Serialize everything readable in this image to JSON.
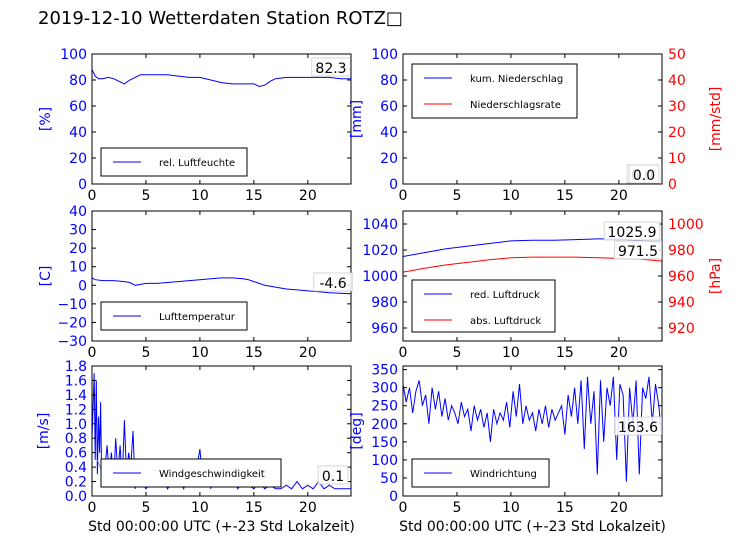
{
  "title": "2019-12-10 Wetterdaten Station ROTZ□",
  "colors": {
    "blue": "#0000ff",
    "red": "#ff0000",
    "lightblue": "#8080ff"
  },
  "chart_data": [
    {
      "id": "humidity",
      "type": "line",
      "ylabel": "[%]",
      "xlim": [
        0,
        24
      ],
      "ylim": [
        0,
        100
      ],
      "xticks": [
        0,
        5,
        10,
        15,
        20
      ],
      "yticks": [
        0,
        20,
        40,
        60,
        80,
        100
      ],
      "grid": false,
      "legend_position": "lower-left",
      "annotation": "82.3",
      "series": [
        {
          "name": "rel. Luftfeuchte",
          "color": "#0000ff",
          "x": [
            0,
            0.3,
            0.6,
            1,
            1.5,
            2,
            2.5,
            3,
            3.5,
            4,
            4.5,
            5,
            6,
            7,
            8,
            9,
            10,
            11,
            12,
            13,
            14,
            15,
            15.5,
            16,
            16.5,
            17,
            18,
            19,
            20,
            21,
            22,
            23,
            24
          ],
          "y": [
            88,
            83,
            81,
            81,
            82,
            81,
            79,
            77,
            80,
            82,
            84,
            84,
            84,
            84,
            83,
            82,
            82,
            80,
            78,
            77,
            77,
            77,
            75,
            76,
            79,
            81,
            82,
            82,
            82,
            82,
            82,
            81,
            81
          ]
        }
      ]
    },
    {
      "id": "precipitation",
      "type": "line",
      "ylabel": "[mm]",
      "ylabel_right": "[mm/std]",
      "xlim": [
        0,
        24
      ],
      "ylim": [
        0,
        100
      ],
      "ylim_right": [
        0,
        50
      ],
      "xticks": [
        0,
        5,
        10,
        15,
        20
      ],
      "yticks": [
        0,
        20,
        40,
        60,
        80,
        100
      ],
      "yticks_right": [
        0,
        10,
        20,
        30,
        40,
        50
      ],
      "grid": false,
      "legend_position": "upper-left",
      "annotations": [
        "0.0",
        "0.0"
      ],
      "series": [
        {
          "name": "kum. Niederschlag",
          "color": "#0000ff",
          "axis": "left",
          "x": [
            0,
            24
          ],
          "y": [
            0,
            0
          ]
        },
        {
          "name": "Niederschlagsrate",
          "color": "#ff0000",
          "axis": "right",
          "x": [
            0,
            24
          ],
          "y": [
            0,
            0
          ]
        }
      ]
    },
    {
      "id": "temperature",
      "type": "line",
      "ylabel": "[C]",
      "xlim": [
        0,
        24
      ],
      "ylim": [
        -30,
        40
      ],
      "xticks": [
        0,
        5,
        10,
        15,
        20
      ],
      "yticks": [
        -30,
        -20,
        -10,
        0,
        10,
        20,
        30,
        40
      ],
      "grid": false,
      "legend_position": "lower-left",
      "annotation": "-4.6",
      "series": [
        {
          "name": "Lufttemperatur",
          "color": "#0000ff",
          "x": [
            0,
            0.3,
            1,
            2,
            3,
            3.5,
            4,
            4.5,
            5,
            6,
            7,
            8,
            9,
            10,
            11,
            12,
            13,
            14,
            14.5,
            15,
            15.5,
            16,
            17,
            18,
            19,
            20,
            21,
            22,
            23,
            24
          ],
          "y": [
            4,
            3,
            2.5,
            2.5,
            2,
            1.5,
            0,
            0.5,
            1,
            1,
            1.5,
            2,
            2.5,
            3,
            3.5,
            4,
            4,
            3.5,
            3,
            2,
            1,
            0,
            -1,
            -2,
            -2.5,
            -3,
            -3.5,
            -4,
            -4.3,
            -4.6
          ]
        }
      ]
    },
    {
      "id": "pressure",
      "type": "line",
      "ylabel_right": "[hPa]",
      "xlim": [
        0,
        24
      ],
      "ylim": [
        950,
        1050
      ],
      "ylim_right": [
        910,
        1010
      ],
      "xticks": [
        0,
        5,
        10,
        15,
        20
      ],
      "yticks": [
        960,
        980,
        1000,
        1020,
        1040
      ],
      "yticks_right": [
        920,
        940,
        960,
        980,
        1000
      ],
      "grid": false,
      "legend_position": "lower-left",
      "annotations": [
        "1025.9",
        "971.5"
      ],
      "series": [
        {
          "name": "red. Luftdruck",
          "color": "#0000ff",
          "axis": "left",
          "x": [
            0,
            2,
            4,
            6,
            8,
            10,
            12,
            14,
            16,
            18,
            20,
            22,
            24
          ],
          "y": [
            1015,
            1018,
            1021,
            1023,
            1025,
            1027,
            1027.5,
            1027.5,
            1028,
            1028.5,
            1028.5,
            1027,
            1026
          ]
        },
        {
          "name": "abs. Luftdruck",
          "color": "#ff0000",
          "axis": "right",
          "x": [
            0,
            2,
            4,
            6,
            8,
            10,
            12,
            14,
            16,
            18,
            20,
            22,
            24
          ],
          "y": [
            963,
            966,
            968.5,
            970.5,
            972.5,
            974,
            974.5,
            974.5,
            974.5,
            974,
            973.5,
            973,
            971.5
          ]
        }
      ]
    },
    {
      "id": "windspeed",
      "type": "line",
      "ylabel": "[m/s]",
      "xlabel": "Std 00:00:00 UTC (+-23 Std Lokalzeit)",
      "xlim": [
        0,
        24
      ],
      "ylim": [
        0,
        1.8
      ],
      "xticks": [
        0,
        5,
        10,
        15,
        20
      ],
      "yticks": [
        0,
        0.2,
        0.4,
        0.6,
        0.8,
        1.0,
        1.2,
        1.4,
        1.6,
        1.8
      ],
      "ytick_labels": [
        "0.0",
        "0.2",
        "0.4",
        "0.6",
        "0.8",
        "1.0",
        "1.2",
        "1.4",
        "1.6",
        "1.8"
      ],
      "grid": false,
      "legend_position": "lower-center",
      "annotation": "0.1",
      "series": [
        {
          "name": "Windgeschwindigkeit",
          "color": "#0000ff",
          "x": [
            0,
            0.2,
            0.3,
            0.4,
            0.5,
            0.6,
            0.7,
            0.8,
            0.9,
            1.0,
            1.2,
            1.4,
            1.6,
            1.8,
            2.0,
            2.2,
            2.4,
            2.6,
            2.8,
            3.0,
            3.2,
            3.4,
            3.6,
            3.8,
            4.0,
            4.3,
            4.6,
            5.0,
            5.5,
            6,
            6.5,
            7,
            7.5,
            8,
            8.5,
            9,
            9.5,
            10,
            10.2,
            10.4,
            10.6,
            10.8,
            11,
            11.3,
            11.6,
            12,
            12.5,
            13,
            13.5,
            14,
            14.5,
            15,
            15.5,
            16,
            16.5,
            17,
            17.5,
            18,
            18.5,
            19,
            19.5,
            20,
            20.5,
            21,
            21.5,
            22,
            22.5,
            23,
            23.5,
            24
          ],
          "y": [
            0.8,
            1.7,
            0.5,
            1.6,
            0.3,
            1.1,
            0.6,
            1.3,
            0.2,
            0.5,
            0.4,
            0.7,
            0.3,
            0.6,
            0.2,
            0.8,
            0.3,
            0.7,
            0.2,
            1.05,
            0.3,
            0.6,
            0.4,
            0.9,
            0.1,
            0.4,
            0.2,
            0.1,
            0.2,
            0.15,
            0.3,
            0.1,
            0.2,
            0.25,
            0.1,
            0.3,
            0.2,
            0.65,
            0.3,
            0.45,
            0.2,
            0.35,
            0.1,
            0.3,
            0.2,
            0.25,
            0.15,
            0.3,
            0.1,
            0.2,
            0.15,
            0.1,
            0.2,
            0.1,
            0.15,
            0.1,
            0.1,
            0.15,
            0.1,
            0.2,
            0.1,
            0.15,
            0.1,
            0.2,
            0.1,
            0.15,
            0.1,
            0.1,
            0.1,
            0.1
          ]
        },
        {
          "name": "",
          "color": "#8080ff",
          "x": [
            0.5,
            1,
            1.5,
            2,
            2.5,
            3,
            3.5,
            4,
            4.5,
            5,
            5.5,
            6,
            6.5,
            7,
            7.5,
            8,
            8.5,
            9,
            9.5,
            10,
            10.5,
            11,
            11.5,
            12,
            12.5,
            13,
            13.5,
            14,
            14.5,
            15,
            15.5,
            16,
            16.5,
            17
          ],
          "y": [
            0.5,
            0.3,
            0.4,
            0.2,
            0.35,
            0.25,
            0.4,
            0.2,
            0.3,
            0.2,
            0.25,
            0.2,
            0.3,
            0.15,
            0.3,
            0.25,
            0.4,
            0.3,
            0.35,
            0.45,
            0.5,
            0.4,
            0.45,
            0.35,
            0.3,
            0.25,
            0.35,
            0.3,
            0.2,
            0.15,
            0.3,
            0.2,
            0.25,
            0.15
          ]
        }
      ]
    },
    {
      "id": "winddir",
      "type": "line",
      "ylabel": "[deg]",
      "xlabel": "Std 00:00:00 UTC (+-23 Std Lokalzeit)",
      "xlim": [
        0,
        24
      ],
      "ylim": [
        0,
        360
      ],
      "xticks": [
        0,
        5,
        10,
        15,
        20
      ],
      "yticks": [
        0,
        50,
        100,
        150,
        200,
        250,
        300,
        350
      ],
      "grid": false,
      "legend_position": "lower-left",
      "annotation": "163.6",
      "series": [
        {
          "name": "Windrichtung",
          "color": "#0000ff",
          "x": [
            0,
            0.3,
            0.6,
            0.9,
            1.2,
            1.5,
            1.8,
            2.1,
            2.4,
            2.7,
            3.0,
            3.3,
            3.6,
            3.9,
            4.2,
            4.5,
            4.8,
            5.1,
            5.4,
            5.7,
            6.0,
            6.3,
            6.6,
            6.9,
            7.2,
            7.5,
            7.8,
            8.1,
            8.4,
            8.7,
            9.0,
            9.3,
            9.6,
            9.9,
            10.2,
            10.5,
            10.8,
            11.1,
            11.4,
            11.7,
            12.0,
            12.3,
            12.6,
            12.9,
            13.2,
            13.5,
            13.8,
            14.1,
            14.4,
            14.7,
            15.0,
            15.3,
            15.6,
            15.9,
            16.2,
            16.5,
            16.8,
            17.1,
            17.4,
            17.7,
            18.0,
            18.3,
            18.6,
            18.9,
            19.2,
            19.5,
            19.8,
            20.1,
            20.4,
            20.7,
            21.0,
            21.3,
            21.6,
            21.9,
            22.2,
            22.5,
            22.8,
            23.1,
            23.4,
            23.7,
            24
          ],
          "y": [
            310,
            260,
            300,
            230,
            290,
            320,
            250,
            280,
            200,
            300,
            240,
            290,
            220,
            270,
            210,
            250,
            230,
            200,
            260,
            220,
            240,
            180,
            250,
            210,
            240,
            190,
            230,
            150,
            240,
            200,
            230,
            210,
            260,
            190,
            290,
            220,
            310,
            200,
            250,
            210,
            230,
            180,
            240,
            200,
            250,
            190,
            240,
            210,
            230,
            250,
            170,
            280,
            220,
            300,
            200,
            320,
            130,
            330,
            200,
            290,
            60,
            320,
            150,
            300,
            250,
            330,
            100,
            310,
            280,
            40,
            300,
            200,
            320,
            60,
            300,
            270,
            330,
            200,
            310,
            250,
            160
          ]
        }
      ]
    }
  ]
}
